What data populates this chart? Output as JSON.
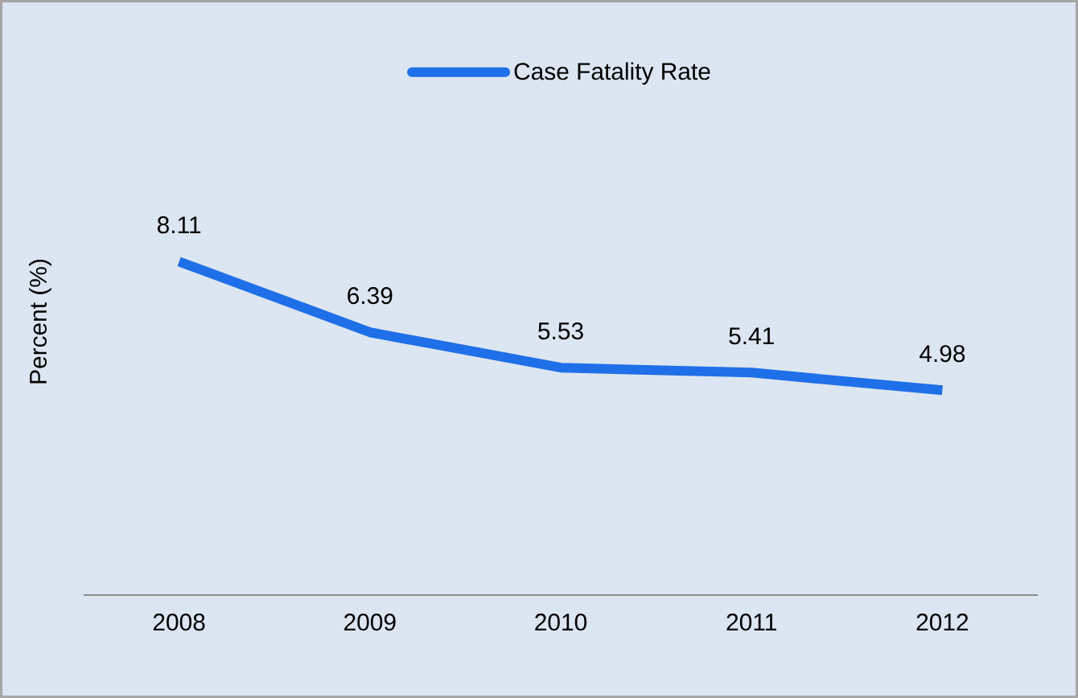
{
  "chart_data": {
    "type": "line",
    "ylabel": "Percent (%)",
    "categories": [
      "2008",
      "2009",
      "2010",
      "2011",
      "2012"
    ],
    "series": [
      {
        "name": "Case Fatality Rate",
        "color": "#1f6fe8",
        "values": [
          8.11,
          6.39,
          5.53,
          5.41,
          4.98
        ]
      }
    ],
    "data_labels": true,
    "legend": "top",
    "marker": "none",
    "line_style": "solid"
  }
}
